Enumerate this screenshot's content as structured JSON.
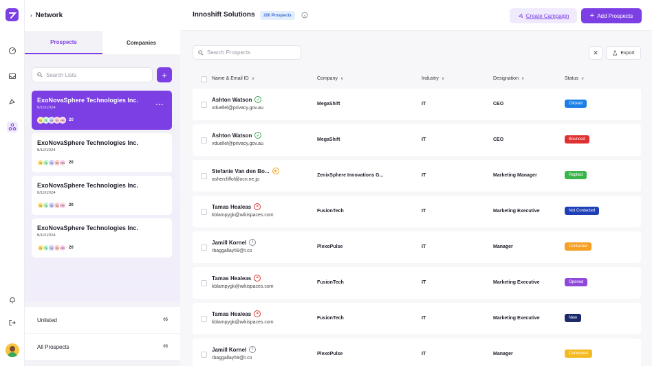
{
  "nav": {
    "header_title": "Network",
    "tabs": [
      "Prospects",
      "Companies"
    ],
    "list_search_placeholder": "Search Lists",
    "add_list_label": "+"
  },
  "lists": [
    {
      "name": "ExoNovaSphere Technologies Inc.",
      "date": "6/10/2024",
      "count": "20",
      "more": "...",
      "selected": true
    },
    {
      "name": "ExoNovaSphere Technologies Inc.",
      "date": "6/10/2024",
      "count": "20"
    },
    {
      "name": "ExoNovaSphere Technologies Inc.",
      "date": "6/10/2024",
      "count": "20"
    },
    {
      "name": "ExoNovaSphere Technologies Inc.",
      "date": "6/10/2024",
      "count": "20"
    }
  ],
  "chip_labels": [
    "SI",
    "TL",
    "VI",
    "SI",
    "PR"
  ],
  "chip_colors": [
    "#fde68a",
    "#bbf7d0",
    "#c7d2fe",
    "#fecaca",
    "#fbcfe8"
  ],
  "bottom_items": [
    {
      "label": "Unlisted",
      "count": "05"
    },
    {
      "label": "All Prospects",
      "count": "05"
    }
  ],
  "topbar": {
    "title": "Innoshift Solutions",
    "badge": "200 Prospects",
    "create_campaign": "Create Campaign",
    "add_prospects": "Add Prospects"
  },
  "toolbar": {
    "search_placeholder": "Search Prospects",
    "close_label": "✕",
    "export_label": "Export"
  },
  "columns": [
    "Name & Email ID",
    "Company",
    "Industry",
    "Designation",
    "Status"
  ],
  "rows": [
    {
      "name": "Ashton Watson",
      "email": "vduellel@privacy.gov.au",
      "company": "MegaShift",
      "industry": "IT",
      "designation": "CEO",
      "status": "Clicked",
      "status_color": "#1d7fe6",
      "icon": "check",
      "icon_color": "#3aa757"
    },
    {
      "name": "Ashton Watson",
      "email": "vduellel@privacy.gov.au",
      "company": "MegaShift",
      "industry": "IT",
      "designation": "CEO",
      "status": "Bounced",
      "status_color": "#e03131",
      "icon": "check",
      "icon_color": "#3aa757"
    },
    {
      "name": "Stefanie Van den Bo...",
      "email": "ashercliffol@ocn.ne.jp",
      "company": "ZenixSphere Innovations G...",
      "industry": "IT",
      "designation": "Marketing Manager",
      "status": "Replied",
      "status_color": "#3bb54a",
      "icon": "star",
      "icon_color": "#f5a623"
    },
    {
      "name": "Tamas Healeas",
      "email": "kblampygk@wikispaces.com",
      "company": "FusionTech",
      "industry": "IT",
      "designation": "Marketing Executive",
      "status": "Not Contacted",
      "status_color": "#1f3fb6",
      "icon": "x",
      "icon_color": "#e03131"
    },
    {
      "name": "Jamill Kornel",
      "email": "rbaggallay59@t.co",
      "company": "PlexoPulse",
      "industry": "IT",
      "designation": "Manager",
      "status": "Contacted",
      "status_color": "#f59f23",
      "icon": "info",
      "icon_color": "#8a8a96"
    },
    {
      "name": "Tamas Healeas",
      "email": "kblampygk@wikispaces.com",
      "company": "FusionTech",
      "industry": "IT",
      "designation": "Marketing Executive",
      "status": "Opened",
      "status_color": "#8e49d9",
      "icon": "x",
      "icon_color": "#e03131"
    },
    {
      "name": "Tamas Healeas",
      "email": "kblampygk@wikispaces.com",
      "company": "FusionTech",
      "industry": "IT",
      "designation": "Marketing Executive",
      "status": "New",
      "status_color": "#1b2a6b",
      "icon": "x",
      "icon_color": "#e03131"
    },
    {
      "name": "Jamill Kornel",
      "email": "rbaggallay59@t.co",
      "company": "PlexoPulse",
      "industry": "IT",
      "designation": "Manager",
      "status": "Converted",
      "status_color": "#f5b921",
      "icon": "info",
      "icon_color": "#8a8a96"
    }
  ],
  "colors": {
    "accent": "#7b3fe4"
  }
}
